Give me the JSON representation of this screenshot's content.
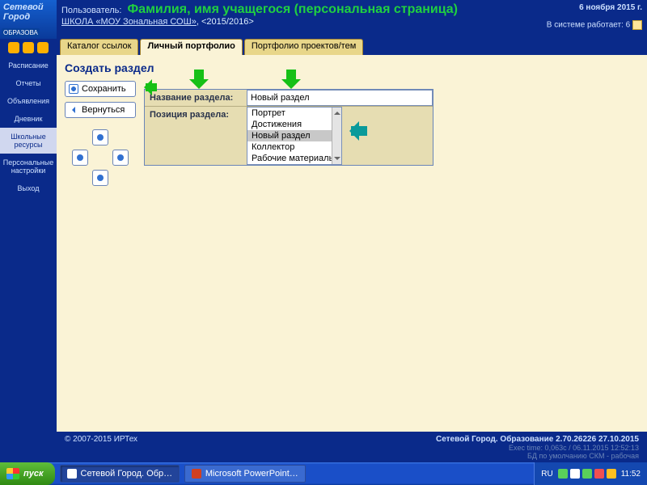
{
  "logo": {
    "top": "Сетевой",
    "mid": "Город",
    "badge": "ОБРАЗОВА"
  },
  "header": {
    "user_label": "Пользователь:",
    "page_title": "Фамилия, имя учащегося (персональная страница)",
    "school_link": "ШКОЛА «МОУ Зональная СОШ»",
    "period": ", <2015/2016>",
    "date": "6 ноября 2015 г.",
    "sys_label": "В системе работает:",
    "sys_count": "6"
  },
  "sidebar": {
    "items": [
      "Расписание",
      "Отчеты",
      "Объявления",
      "Дневник",
      "Школьные ресурсы",
      "Персональные настройки",
      "Выход"
    ],
    "active_index": 4
  },
  "tabs": {
    "items": [
      "Каталог ссылок",
      "Личный портфолио",
      "Портфолио проектов/тем"
    ],
    "active_index": 1
  },
  "section_title": "Создать раздел",
  "actions": {
    "save": "Сохранить",
    "back": "Вернуться"
  },
  "form": {
    "name_label": "Название раздела:",
    "name_value": "Новый раздел",
    "pos_label": "Позиция раздела:",
    "options": [
      "Портрет",
      "Достижения",
      "Новый раздел",
      "Коллектор",
      "Рабочие материалы"
    ],
    "selected_index": 2
  },
  "footer": {
    "copyright": "© 2007-2015 ИРТех",
    "product": "Сетевой Город. Образование 2.70.26226   27.10.2015",
    "line2": "Exec time: 0,063с / 06.11.2015 12:52:13",
    "line3": "БД по умолчанию СКМ - рабочая"
  },
  "taskbar": {
    "start": "пуск",
    "tasks": [
      {
        "label": "Сетевой Город. Обр…",
        "icon": "app",
        "active": true
      },
      {
        "label": "Microsoft PowerPoint …",
        "icon": "pp",
        "active": false
      }
    ],
    "lang": "RU",
    "clock": "11:52"
  },
  "colors": {
    "tray_icons": [
      "#5ad05a",
      "#ffffff",
      "#5ad05a",
      "#f05050",
      "#ffc020"
    ]
  }
}
